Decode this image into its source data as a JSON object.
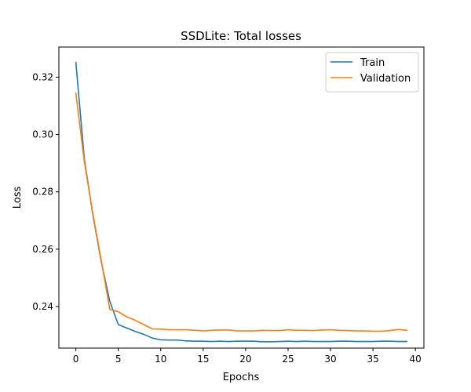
{
  "chart_data": {
    "type": "line",
    "title": "SSDLite: Total losses",
    "xlabel": "Epochs",
    "ylabel": "Loss",
    "xlim": [
      -2,
      41
    ],
    "ylim": [
      0.2255,
      0.3305
    ],
    "xticks": [
      0,
      5,
      10,
      15,
      20,
      25,
      30,
      35,
      40
    ],
    "yticks": [
      0.24,
      0.26,
      0.28,
      0.3,
      0.32
    ],
    "grid": false,
    "legend": "upper right",
    "x": [
      0,
      1,
      2,
      3,
      4,
      5,
      6,
      7,
      8,
      9,
      10,
      11,
      12,
      13,
      14,
      15,
      16,
      17,
      18,
      19,
      20,
      21,
      22,
      23,
      24,
      25,
      26,
      27,
      28,
      29,
      30,
      31,
      32,
      33,
      34,
      35,
      36,
      37,
      38,
      39
    ],
    "series": [
      {
        "name": "Train",
        "color": "#1f77b4",
        "values": [
          0.3252,
          0.2915,
          0.272,
          0.2555,
          0.2418,
          0.2337,
          0.2325,
          0.2313,
          0.2303,
          0.229,
          0.2284,
          0.2283,
          0.2283,
          0.228,
          0.2279,
          0.2279,
          0.2278,
          0.2279,
          0.2278,
          0.2279,
          0.2279,
          0.2279,
          0.2277,
          0.2277,
          0.2278,
          0.2279,
          0.2278,
          0.2279,
          0.2278,
          0.2278,
          0.2278,
          0.2279,
          0.2279,
          0.2278,
          0.2278,
          0.2278,
          0.2279,
          0.2279,
          0.2278,
          0.2278
        ]
      },
      {
        "name": "Validation",
        "color": "#ff7f0e",
        "values": [
          0.3145,
          0.2905,
          0.2725,
          0.256,
          0.239,
          0.2382,
          0.2364,
          0.2352,
          0.2337,
          0.2322,
          0.2321,
          0.2319,
          0.2319,
          0.2319,
          0.2317,
          0.2315,
          0.2317,
          0.2318,
          0.2318,
          0.2315,
          0.2315,
          0.2315,
          0.2317,
          0.2316,
          0.2316,
          0.2319,
          0.2317,
          0.2317,
          0.2316,
          0.2318,
          0.2319,
          0.2317,
          0.2316,
          0.2315,
          0.2315,
          0.2314,
          0.2314,
          0.2316,
          0.232,
          0.2317
        ]
      }
    ]
  }
}
